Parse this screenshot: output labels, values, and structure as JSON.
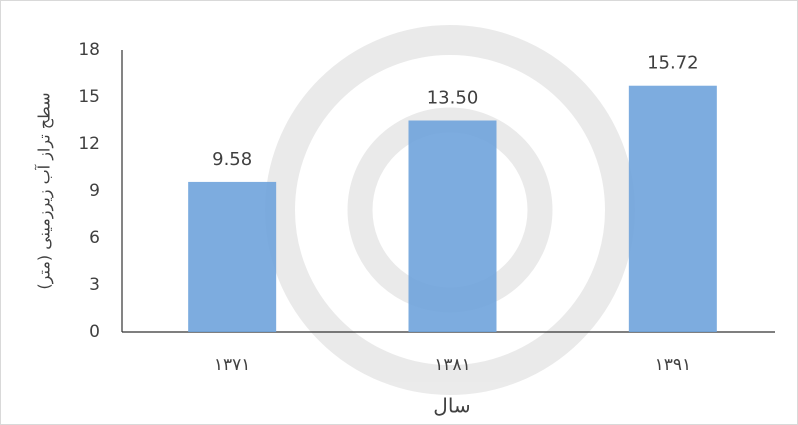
{
  "chart_data": {
    "type": "bar",
    "categories": [
      "۱۳۷۱",
      "۱۳۸۱",
      "۱۳۹۱"
    ],
    "values": [
      9.58,
      13.5,
      15.72
    ],
    "value_labels": [
      "9.58",
      "13.50",
      "15.72"
    ],
    "color": "#6fa3dc",
    "x_label": "سال",
    "y_label": "سطح تراز آب زیرزمینی (متر)",
    "ylim": [
      0,
      18
    ],
    "yticks": [
      0,
      3,
      6,
      9,
      12,
      15,
      18
    ],
    "grid": false
  }
}
